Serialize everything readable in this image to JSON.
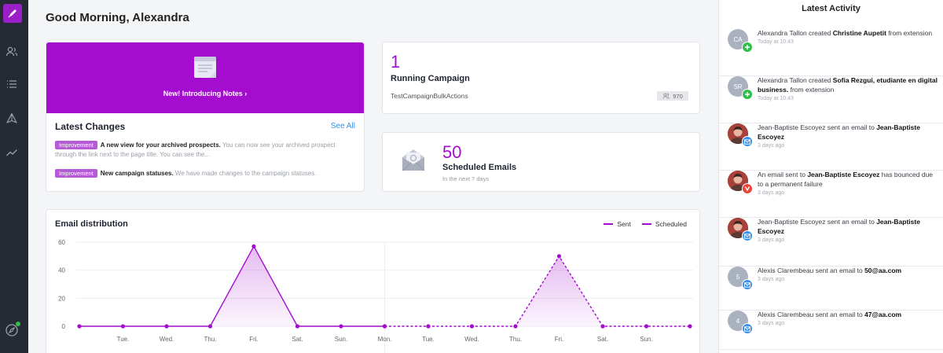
{
  "greeting": "Good Morning, Alexandra",
  "sidebar": {
    "icons": [
      "pen-logo",
      "users-icon",
      "list-icon",
      "send-icon",
      "trend-icon",
      "compass-icon"
    ]
  },
  "notes": {
    "banner": "New! Introducing Notes ›",
    "title": "Latest Changes",
    "see_all": "See All",
    "changes": [
      {
        "tag": "Improvement",
        "bold": "A new view for your archived prospects.",
        "text": " You can now see your archived prospect through the link next to the page title. You can see the..."
      },
      {
        "tag": "Improvement",
        "bold": "New campaign statuses.",
        "text": " We have made changes to the campaign statuses."
      }
    ]
  },
  "running": {
    "count": "1",
    "label": "Running Campaign",
    "campaign": "TestCampaignBulkActions",
    "badge": "970"
  },
  "scheduled": {
    "count": "50",
    "label": "Scheduled Emails",
    "sub": "In the next 7 days"
  },
  "chart": {
    "title": "Email distribution",
    "legend_sent": "Sent",
    "legend_scheduled": "Scheduled"
  },
  "chart_data": {
    "type": "area",
    "title": "Email distribution",
    "x": [
      "",
      "Tue.",
      "Wed.",
      "Thu.",
      "Fri.",
      "Sat.",
      "Sun.",
      "Mon.",
      "Tue.",
      "Wed.",
      "Thu.",
      "Fri.",
      "Sat.",
      "Sun.",
      ""
    ],
    "series": [
      {
        "name": "Sent",
        "style": "solid",
        "values": [
          0,
          0,
          0,
          0,
          57,
          0,
          0,
          0,
          null,
          null,
          null,
          null,
          null,
          null,
          null
        ]
      },
      {
        "name": "Scheduled",
        "style": "dashed",
        "values": [
          null,
          null,
          null,
          null,
          null,
          null,
          null,
          0,
          0,
          0,
          0,
          50,
          0,
          0,
          0
        ]
      }
    ],
    "yticks": [
      0,
      20,
      40,
      60
    ],
    "ylim": [
      0,
      60
    ],
    "grid": true,
    "legend": "top-right",
    "color": "#a40ccf"
  },
  "activity": {
    "title": "Latest Activity",
    "items": [
      {
        "avatar": "CA",
        "photo": false,
        "kind": "add",
        "pre": "Alexandra Tallon created ",
        "bold": "Christine Aupetit",
        "post": " from extension",
        "time": "Today at 10:43"
      },
      {
        "avatar": "SR",
        "photo": false,
        "kind": "add",
        "pre": "Alexandra Tallon created ",
        "bold": "Sofia Rezgui, etudiante en digital business.",
        "post": " from extension",
        "time": "Today at 10:43"
      },
      {
        "avatar": "",
        "photo": true,
        "kind": "mail",
        "pre": "Jean-Baptiste Escoyez sent an email to ",
        "bold": "Jean-Baptiste Escoyez",
        "post": "",
        "time": "3 days ago"
      },
      {
        "avatar": "",
        "photo": true,
        "kind": "bounce",
        "pre": "An email sent to ",
        "bold": "Jean-Baptiste Escoyez",
        "post": " has bounced due to a permanent failure",
        "time": "3 days ago"
      },
      {
        "avatar": "",
        "photo": true,
        "kind": "mail",
        "pre": "Jean-Baptiste Escoyez sent an email to ",
        "bold": "Jean-Baptiste Escoyez",
        "post": "",
        "time": "3 days ago"
      },
      {
        "avatar": "5",
        "photo": false,
        "kind": "mail",
        "pre": "Alexis Clarembeau sent an email to ",
        "bold": "50@aa.com",
        "post": "",
        "time": "3 days ago"
      },
      {
        "avatar": "4",
        "photo": false,
        "kind": "mail",
        "pre": "Alexis Clarembeau sent an email to ",
        "bold": "47@aa.com",
        "post": "",
        "time": "3 days ago"
      }
    ]
  },
  "colors": {
    "accent": "#a40ccf",
    "sidebar": "#262a35",
    "link": "#3a8ee6"
  }
}
